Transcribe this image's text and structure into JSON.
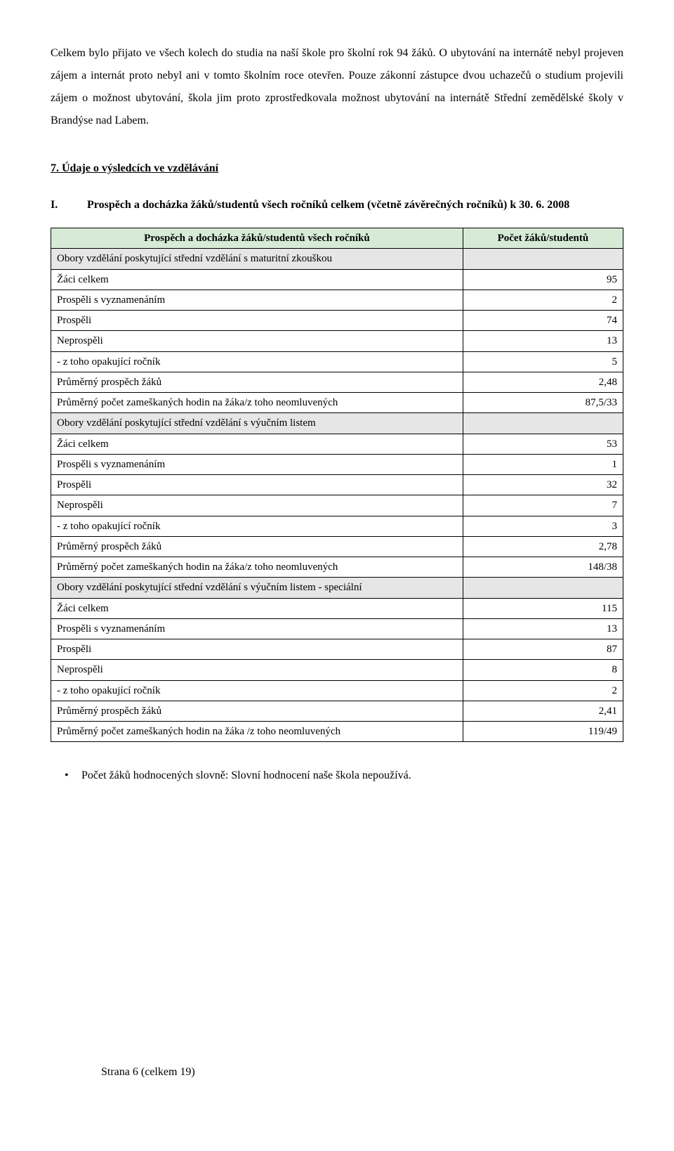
{
  "para1": "Celkem bylo přijato ve všech kolech do studia na naší škole pro školní rok 94 žáků. O ubytování na internátě nebyl projeven zájem a internát proto nebyl ani v tomto školním roce otevřen. Pouze zákonní zástupce dvou uchazečů o studium projevili zájem o možnost ubytování, škola jim proto zprostředkovala možnost ubytování na internátě Střední zemědělské školy v Brandýse nad Labem.",
  "section": {
    "num": "7.",
    "title": "Údaje o výsledcích ve vzdělávání"
  },
  "sub": {
    "num": "I.",
    "text": "Prospěch a docházka žáků/studentů všech ročníků celkem (včetně závěrečných ročníků) k 30. 6. 2008"
  },
  "table": {
    "header": {
      "label": "Prospěch a docházka žáků/studentů všech ročníků",
      "value": "Počet žáků/studentů"
    },
    "rows": [
      {
        "type": "section",
        "label": "Obory vzdělání poskytující střední vzdělání s maturitní zkouškou",
        "value": ""
      },
      {
        "type": "data",
        "label": "Žáci celkem",
        "value": "95"
      },
      {
        "type": "data",
        "label": "Prospěli s vyznamenáním",
        "value": "2"
      },
      {
        "type": "data",
        "label": "Prospěli",
        "value": "74"
      },
      {
        "type": "data",
        "label": "Neprospěli",
        "value": "13"
      },
      {
        "type": "data",
        "label": "- z toho opakující ročník",
        "value": "5"
      },
      {
        "type": "data",
        "label": "Průměrný prospěch žáků",
        "value": "2,48"
      },
      {
        "type": "data",
        "label": "Průměrný počet zameškaných hodin na žáka/z toho neomluvených",
        "value": "87,5/33"
      },
      {
        "type": "section",
        "label": "Obory vzdělání poskytující střední vzdělání s výučním listem",
        "value": ""
      },
      {
        "type": "data",
        "label": "Žáci celkem",
        "value": "53"
      },
      {
        "type": "data",
        "label": "Prospěli s vyznamenáním",
        "value": "1"
      },
      {
        "type": "data",
        "label": "Prospěli",
        "value": "32"
      },
      {
        "type": "data",
        "label": "Neprospěli",
        "value": "7"
      },
      {
        "type": "data",
        "label": "- z toho opakující ročník",
        "value": "3"
      },
      {
        "type": "data",
        "label": "Průměrný prospěch žáků",
        "value": "2,78"
      },
      {
        "type": "data",
        "label": "Průměrný počet zameškaných hodin na žáka/z toho neomluvených",
        "value": "148/38"
      },
      {
        "type": "section",
        "label": "Obory vzdělání poskytující střední vzdělání s výučním listem - speciální",
        "value": ""
      },
      {
        "type": "data",
        "label": "Žáci celkem",
        "value": "115"
      },
      {
        "type": "data",
        "label": "Prospěli s vyznamenáním",
        "value": "13"
      },
      {
        "type": "data",
        "label": "Prospěli",
        "value": "87"
      },
      {
        "type": "data",
        "label": "Neprospěli",
        "value": "8"
      },
      {
        "type": "data",
        "label": "- z toho opakující ročník",
        "value": "2"
      },
      {
        "type": "data",
        "label": "Průměrný prospěch žáků",
        "value": "2,41"
      },
      {
        "type": "data",
        "label": "Průměrný počet zameškaných hodin na žáka /z toho neomluvených",
        "value": "119/49"
      }
    ]
  },
  "bullet": "Počet žáků hodnocených slovně: Slovní hodnocení naše škola nepoužívá.",
  "footer": "Strana 6 (celkem 19)"
}
